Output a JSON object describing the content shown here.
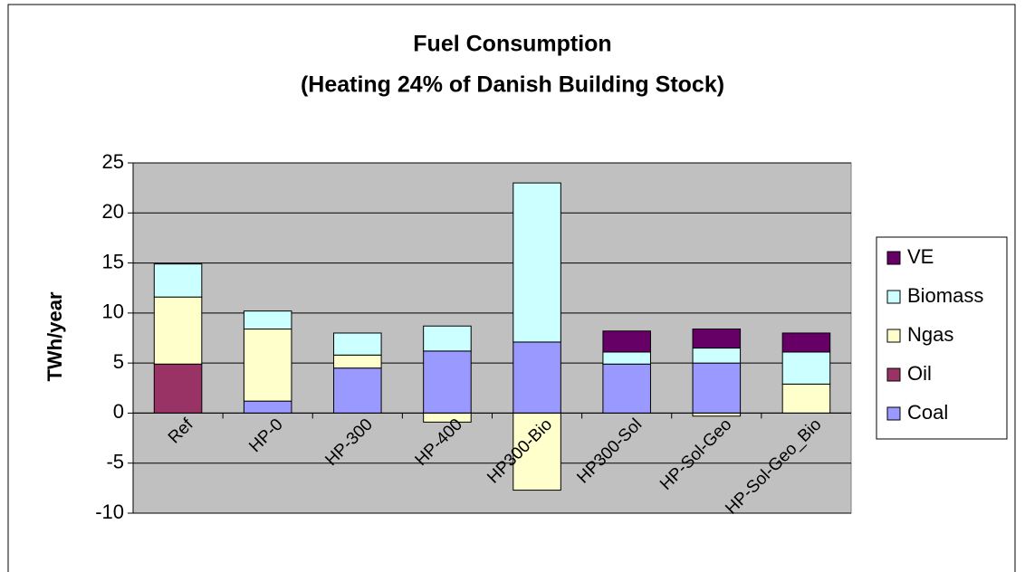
{
  "chart_data": {
    "type": "stacked_bar",
    "title": "Fuel Consumption",
    "subtitle": "(Heating 24% of Danish Building Stock)",
    "y_label": "TWh/year",
    "categories": [
      "Ref",
      "HP-0",
      "HP-300",
      "HP-400",
      "HP300-Bio",
      "HP300-Sol",
      "HP-Sol-Geo",
      "HP-Sol-Geo_Bio"
    ],
    "series": [
      {
        "name": "Coal",
        "color": "#9999ff",
        "values": [
          0,
          1.2,
          4.5,
          6.2,
          7.1,
          4.9,
          5.0,
          0
        ]
      },
      {
        "name": "Oil",
        "color": "#993366",
        "values": [
          4.9,
          0,
          0,
          0,
          0,
          0,
          0,
          0
        ]
      },
      {
        "name": "Ngas",
        "color": "#ffffcc",
        "values": [
          6.7,
          7.2,
          1.3,
          -0.9,
          -7.7,
          0,
          -0.3,
          2.9
        ]
      },
      {
        "name": "Biomass",
        "color": "#ccffff",
        "values": [
          3.3,
          1.8,
          2.2,
          2.5,
          15.9,
          1.2,
          1.5,
          3.2
        ]
      },
      {
        "name": "VE",
        "color": "#660066",
        "values": [
          0,
          0,
          0,
          0,
          0,
          2.1,
          1.9,
          1.9
        ]
      }
    ],
    "ylim": [
      -10,
      25
    ],
    "yticks": [
      -10,
      -5,
      0,
      5,
      10,
      15,
      20,
      25
    ],
    "grid": true,
    "legend": "right",
    "plot_background": "#c0c0c0"
  }
}
